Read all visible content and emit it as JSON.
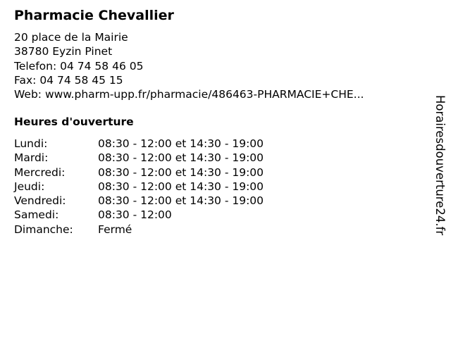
{
  "pharmacy": {
    "name": "Pharmacie Chevallier",
    "address_line1": "20 place de la Mairie",
    "address_line2": "38780 Eyzin Pinet",
    "phone": "Telefon: 04 74 58 46 05",
    "fax": "Fax: 04 74 58 45 15",
    "web": "Web: www.pharm-upp.fr/pharmacie/486463-PHARMACIE+CHE..."
  },
  "hours": {
    "title": "Heures d'ouverture",
    "days": [
      {
        "day": "Lundi:",
        "time": "08:30 - 12:00 et 14:30 - 19:00"
      },
      {
        "day": "Mardi:",
        "time": "08:30 - 12:00 et 14:30 - 19:00"
      },
      {
        "day": "Mercredi:",
        "time": "08:30 - 12:00 et 14:30 - 19:00"
      },
      {
        "day": "Jeudi:",
        "time": "08:30 - 12:00 et 14:30 - 19:00"
      },
      {
        "day": "Vendredi:",
        "time": "08:30 - 12:00 et 14:30 - 19:00"
      },
      {
        "day": "Samedi:",
        "time": "08:30 - 12:00"
      },
      {
        "day": "Dimanche:",
        "time": "Fermé"
      }
    ]
  },
  "watermark": "Horairesdouverture24.fr"
}
